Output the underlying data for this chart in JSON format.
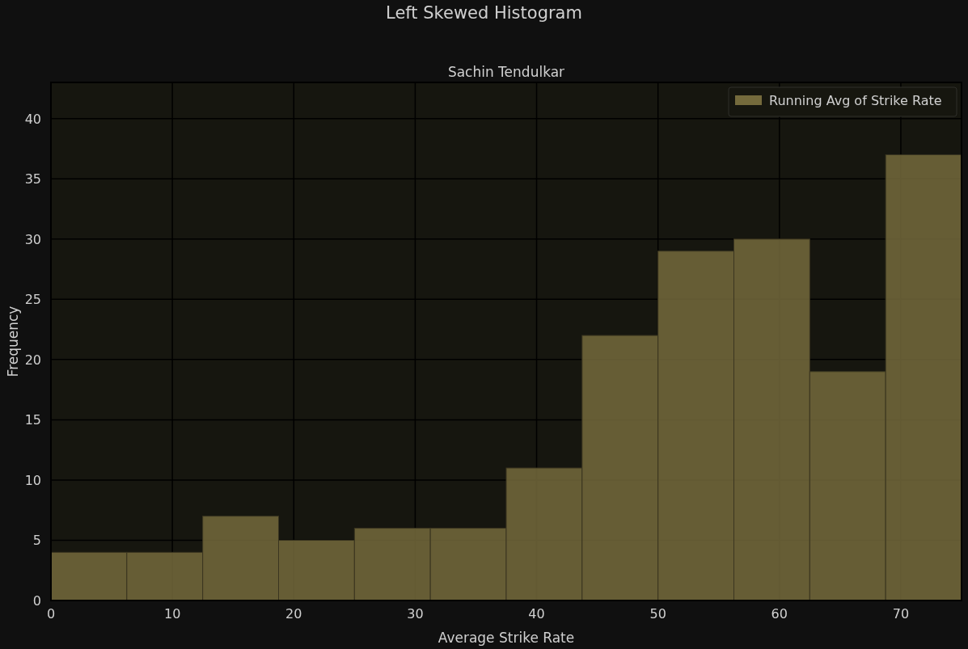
{
  "chart_data": {
    "type": "histogram",
    "title": "Left Skewed Histogram",
    "subtitle": "Sachin Tendulkar",
    "xlabel": "Average Strike Rate",
    "ylabel": "Frequency",
    "bins": [
      0,
      6.25,
      12.5,
      18.75,
      25,
      31.25,
      37.5,
      43.75,
      50,
      56.25,
      62.5,
      68.75,
      75
    ],
    "series": [
      {
        "name": "Running Avg of Strike Rate",
        "color": "#746a3c",
        "values": [
          4,
          4,
          7,
          5,
          6,
          6,
          11,
          22,
          29,
          30,
          19,
          37
        ]
      }
    ],
    "xlim": [
      0,
      75
    ],
    "xticks": [
      0,
      10,
      20,
      30,
      40,
      50,
      60,
      70
    ],
    "ylim": [
      0,
      43
    ],
    "yticks": [
      0,
      5,
      10,
      15,
      20,
      25,
      30,
      35,
      40
    ],
    "grid": true,
    "legend": "top right"
  }
}
